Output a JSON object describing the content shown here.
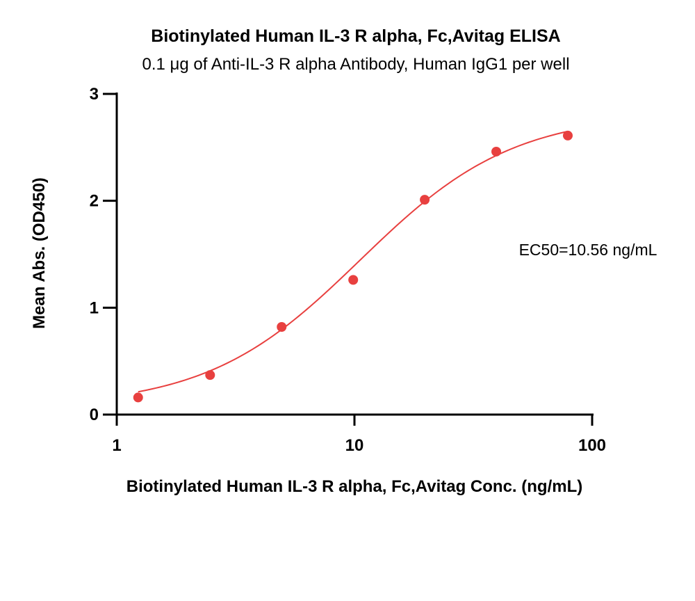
{
  "chart_data": {
    "type": "scatter",
    "title": "Biotinylated Human IL-3 R alpha, Fc,Avitag ELISA",
    "subtitle": "0.1 μg of Anti-IL-3 R alpha Antibody, Human IgG1 per well",
    "xlabel": "Biotinylated Human IL-3 R alpha, Fc,Avitag Conc. (ng/mL)",
    "ylabel": "Mean Abs. (OD450)",
    "x_scale": "log",
    "xlim": [
      1,
      100
    ],
    "ylim": [
      0,
      3
    ],
    "x_ticks": [
      1,
      10,
      100
    ],
    "x_tick_labels": [
      "1",
      "10",
      "100"
    ],
    "y_ticks": [
      0,
      1,
      2,
      3
    ],
    "y_tick_labels": [
      "0",
      "1",
      "2",
      "3"
    ],
    "grid": false,
    "annotation": "EC50=10.56 ng/mL",
    "colors": {
      "series": "#e8403f",
      "axis": "#000000"
    },
    "series": [
      {
        "x": [
          1.23,
          2.47,
          4.94,
          9.88,
          19.75,
          39.5,
          79.0
        ],
        "y": [
          0.16,
          0.37,
          0.82,
          1.26,
          2.01,
          2.46,
          2.61
        ]
      }
    ],
    "fit": {
      "model": "4PL",
      "bottom": 0.07,
      "top": 2.82,
      "ec50": 10.56,
      "hill": 1.35
    }
  }
}
